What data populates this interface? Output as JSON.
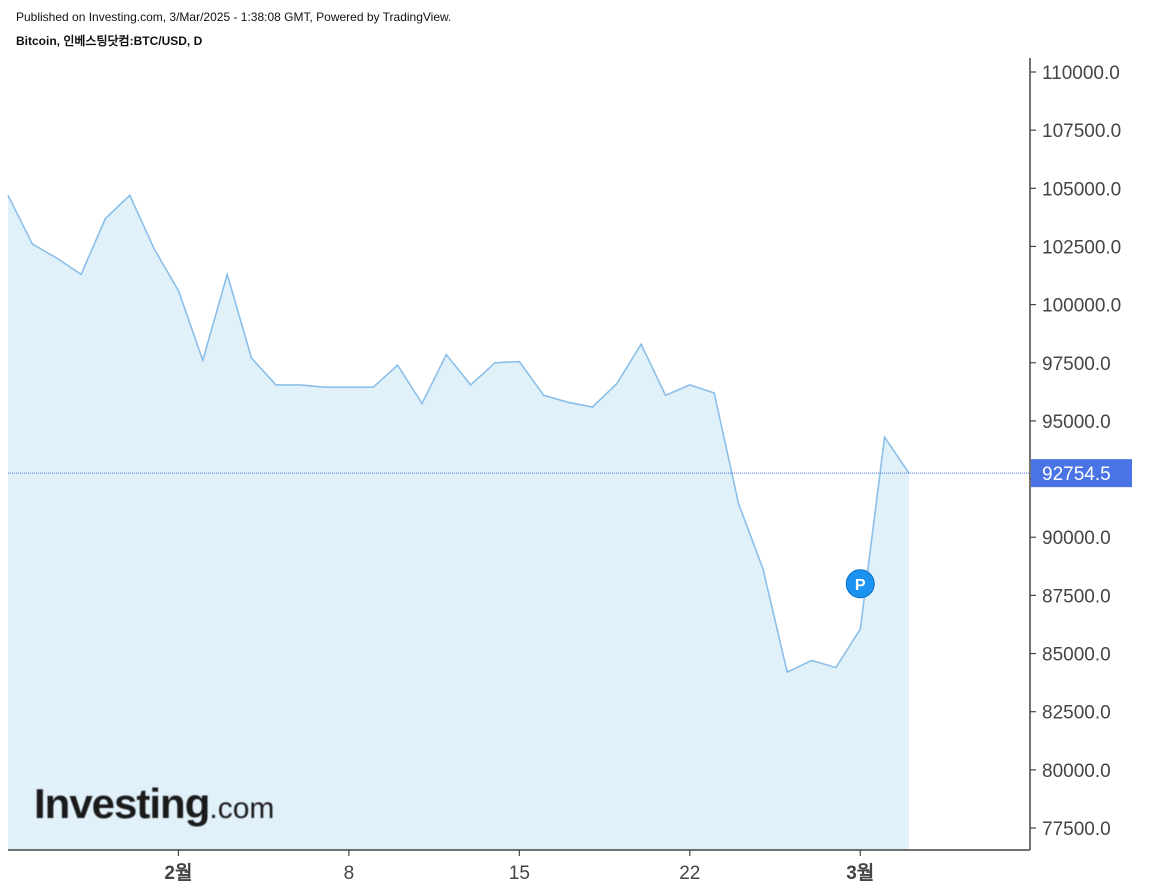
{
  "header": {
    "published": "Published on Investing.com, 3/Mar/2025 - 1:38:08 GMT, Powered by TradingView.",
    "symbol": "Bitcoin, 인베스팅닷컴:BTC/USD, D"
  },
  "logo": {
    "brand": "Investing",
    "tld": ".com"
  },
  "colors": {
    "line": "#8bbfe9",
    "fill": "#e1f1fa",
    "last_price_label": "#4a74e6",
    "marker": "#1a94f0",
    "axis": "#444444"
  },
  "chart_data": {
    "type": "area",
    "x": [
      "2025-01-25",
      "2025-01-26",
      "2025-01-27",
      "2025-01-28",
      "2025-01-29",
      "2025-01-30",
      "2025-01-31",
      "2025-02-01",
      "2025-02-02",
      "2025-02-03",
      "2025-02-04",
      "2025-02-05",
      "2025-02-06",
      "2025-02-07",
      "2025-02-08",
      "2025-02-09",
      "2025-02-10",
      "2025-02-11",
      "2025-02-12",
      "2025-02-13",
      "2025-02-14",
      "2025-02-15",
      "2025-02-16",
      "2025-02-17",
      "2025-02-18",
      "2025-02-19",
      "2025-02-20",
      "2025-02-21",
      "2025-02-22",
      "2025-02-23",
      "2025-02-24",
      "2025-02-25",
      "2025-02-26",
      "2025-02-27",
      "2025-02-28",
      "2025-03-01",
      "2025-03-02",
      "2025-03-03"
    ],
    "values": [
      104700,
      102600,
      102000,
      101300,
      103700,
      104700,
      102400,
      100600,
      97600,
      101300,
      97700,
      96550,
      96550,
      96450,
      96450,
      96450,
      97400,
      95750,
      97850,
      96550,
      97500,
      97550,
      96100,
      95800,
      95600,
      96600,
      98300,
      96100,
      96550,
      96200,
      91450,
      88650,
      84200,
      84700,
      84400,
      86050,
      94300,
      92754.5
    ],
    "y_ticks": [
      77500,
      80000,
      82500,
      85000,
      87500,
      90000,
      92500,
      95000,
      97500,
      100000,
      102500,
      105000,
      107500,
      110000
    ],
    "y_tick_labels": [
      "77500.0",
      "80000.0",
      "82500.0",
      "85000.0",
      "87500.0",
      "90000.0",
      "",
      "95000.0",
      "97500.0",
      "100000.0",
      "102500.0",
      "105000.0",
      "107500.0",
      "110000.0"
    ],
    "x_ticks": [
      {
        "date": "2025-02-01",
        "label": "2월",
        "bold": true
      },
      {
        "date": "2025-02-08",
        "label": "8",
        "bold": false
      },
      {
        "date": "2025-02-15",
        "label": "15",
        "bold": false
      },
      {
        "date": "2025-02-22",
        "label": "22",
        "bold": false
      },
      {
        "date": "2025-03-01",
        "label": "3월",
        "bold": true
      }
    ],
    "ylim": [
      76500,
      110600
    ],
    "last_price": 92754.5,
    "last_price_label": "92754.5",
    "marker": {
      "date": "2025-03-01",
      "value": 88000,
      "label": "P"
    },
    "legend": "none",
    "grid": false
  }
}
